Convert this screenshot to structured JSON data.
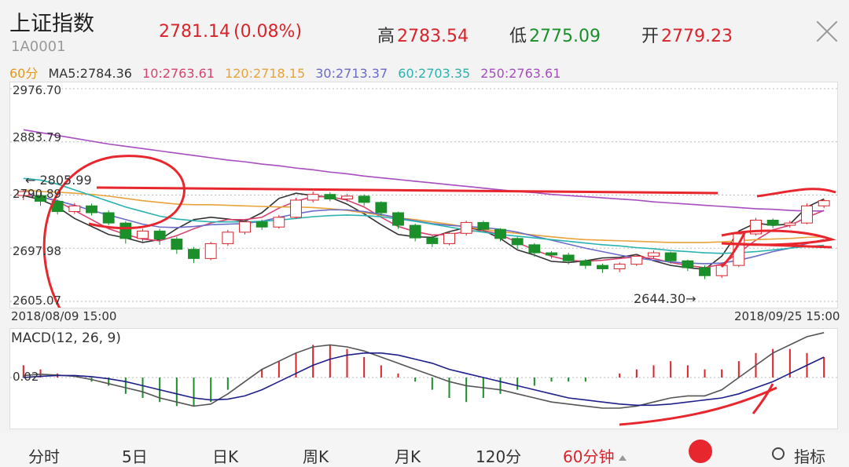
{
  "header": {
    "title": "上证指数",
    "code": "1A0001",
    "price": "2781.14",
    "change_pct": "(0.08%)",
    "high_label": "高",
    "high": "2783.54",
    "low_label": "低",
    "low": "2775.09",
    "open_label": "开",
    "open": "2779.23"
  },
  "ma_legend": [
    {
      "text": "60分",
      "color": "#e09a1e"
    },
    {
      "text": "MA5:2784.36",
      "color": "#333333"
    },
    {
      "text": "10:2763.61",
      "color": "#d9426e"
    },
    {
      "text": "120:2718.15",
      "color": "#e8a33a"
    },
    {
      "text": "30:2713.37",
      "color": "#6b6bc8"
    },
    {
      "text": "60:2703.35",
      "color": "#2ab3b0"
    },
    {
      "text": "250:2763.61",
      "color": "#a84dbf"
    }
  ],
  "chart_data": [
    {
      "type": "line",
      "title": "60分",
      "y_ticks": [
        "2976.70",
        "2883.79",
        "2790.89",
        "2697.98",
        "2605.07"
      ],
      "ylim": [
        2605.07,
        2976.7
      ],
      "x_start": "2018/08/09 15:00",
      "x_end": "2018/09/25 15:00",
      "annotations": {
        "high": "2805.99",
        "low": "2644.30"
      },
      "series": [
        {
          "name": "MA5",
          "color": "#333333",
          "values": [
            2790,
            2783,
            2770,
            2750,
            2736,
            2722,
            2716,
            2708,
            2713,
            2732,
            2748,
            2752,
            2749,
            2745,
            2760,
            2785,
            2794,
            2790,
            2787,
            2775,
            2758,
            2739,
            2722,
            2718,
            2717,
            2727,
            2734,
            2729,
            2715,
            2695,
            2686,
            2675,
            2673,
            2676,
            2681,
            2682,
            2687,
            2676,
            2668,
            2664,
            2661,
            2684,
            2728,
            2742,
            2738,
            2740,
            2770,
            2784
          ]
        },
        {
          "name": "10",
          "color": "#d9426e",
          "values": [
            2792,
            2788,
            2780,
            2764,
            2748,
            2732,
            2722,
            2714,
            2711,
            2720,
            2732,
            2742,
            2748,
            2748,
            2752,
            2768,
            2780,
            2788,
            2788,
            2782,
            2770,
            2752,
            2736,
            2727,
            2721,
            2722,
            2727,
            2729,
            2722,
            2708,
            2695,
            2684,
            2677,
            2675,
            2677,
            2680,
            2683,
            2680,
            2673,
            2668,
            2664,
            2670,
            2690,
            2712,
            2730,
            2738,
            2752,
            2764
          ]
        },
        {
          "name": "120",
          "color": "#e8a33a",
          "values": [
            2800,
            2797,
            2796,
            2794,
            2792,
            2789,
            2785,
            2781,
            2778,
            2775,
            2774,
            2774,
            2773,
            2772,
            2771,
            2770,
            2770,
            2769,
            2767,
            2764,
            2760,
            2756,
            2751,
            2748,
            2744,
            2740,
            2735,
            2731,
            2727,
            2724,
            2721,
            2718,
            2715,
            2713,
            2712,
            2711,
            2710,
            2709,
            2708,
            2708,
            2708,
            2709,
            2711,
            2713,
            2714,
            2715,
            2717,
            2718
          ]
        },
        {
          "name": "30",
          "color": "#6b6bc8",
          "values": [
            2794,
            2788,
            2781,
            2773,
            2764,
            2756,
            2748,
            2740,
            2735,
            2734,
            2736,
            2739,
            2740,
            2741,
            2745,
            2752,
            2758,
            2763,
            2765,
            2765,
            2762,
            2757,
            2751,
            2746,
            2741,
            2738,
            2736,
            2734,
            2731,
            2726,
            2719,
            2712,
            2705,
            2698,
            2692,
            2686,
            2681,
            2677,
            2674,
            2672,
            2671,
            2672,
            2677,
            2684,
            2692,
            2698,
            2706,
            2713
          ]
        },
        {
          "name": "60",
          "color": "#2ab3b0",
          "values": [
            2820,
            2817,
            2810,
            2800,
            2790,
            2780,
            2770,
            2762,
            2754,
            2749,
            2746,
            2744,
            2744,
            2744,
            2745,
            2747,
            2750,
            2753,
            2755,
            2756,
            2755,
            2753,
            2749,
            2745,
            2740,
            2735,
            2730,
            2726,
            2722,
            2719,
            2716,
            2713,
            2710,
            2707,
            2704,
            2702,
            2699,
            2697,
            2694,
            2692,
            2690,
            2689,
            2690,
            2692,
            2695,
            2698,
            2701,
            2703
          ]
        },
        {
          "name": "250",
          "color": "#a84dbf",
          "values": [
            2905,
            2900,
            2895,
            2890,
            2885,
            2880,
            2876,
            2872,
            2868,
            2864,
            2860,
            2856,
            2852,
            2849,
            2845,
            2842,
            2838,
            2835,
            2831,
            2828,
            2824,
            2821,
            2818,
            2815,
            2812,
            2809,
            2806,
            2803,
            2800,
            2797,
            2795,
            2792,
            2790,
            2788,
            2786,
            2784,
            2782,
            2779,
            2777,
            2775,
            2773,
            2771,
            2769,
            2767,
            2766,
            2764,
            2763,
            2763
          ]
        }
      ],
      "candles": [
        [
          2790,
          2797,
          2782,
          2800
        ],
        [
          2790,
          2780,
          2772,
          2795
        ],
        [
          2780,
          2762,
          2757,
          2783
        ],
        [
          2762,
          2772,
          2758,
          2777
        ],
        [
          2772,
          2760,
          2755,
          2776
        ],
        [
          2760,
          2742,
          2738,
          2764
        ],
        [
          2742,
          2715,
          2706,
          2745
        ],
        [
          2715,
          2728,
          2710,
          2732
        ],
        [
          2728,
          2714,
          2704,
          2732
        ],
        [
          2714,
          2696,
          2688,
          2718
        ],
        [
          2696,
          2680,
          2672,
          2700
        ],
        [
          2680,
          2706,
          2677,
          2709
        ],
        [
          2706,
          2726,
          2702,
          2730
        ],
        [
          2726,
          2744,
          2722,
          2748
        ],
        [
          2744,
          2735,
          2730,
          2748
        ],
        [
          2735,
          2752,
          2732,
          2756
        ],
        [
          2752,
          2782,
          2750,
          2786
        ],
        [
          2782,
          2792,
          2778,
          2797
        ],
        [
          2792,
          2784,
          2780,
          2796
        ],
        [
          2784,
          2789,
          2779,
          2793
        ],
        [
          2789,
          2778,
          2772,
          2792
        ],
        [
          2778,
          2760,
          2754,
          2780
        ],
        [
          2760,
          2738,
          2732,
          2762
        ],
        [
          2738,
          2716,
          2710,
          2741
        ],
        [
          2716,
          2706,
          2700,
          2720
        ],
        [
          2706,
          2724,
          2703,
          2727
        ],
        [
          2724,
          2743,
          2720,
          2746
        ],
        [
          2743,
          2731,
          2727,
          2746
        ],
        [
          2731,
          2715,
          2710,
          2733
        ],
        [
          2715,
          2704,
          2697,
          2718
        ],
        [
          2704,
          2690,
          2683,
          2707
        ],
        [
          2690,
          2686,
          2680,
          2693
        ],
        [
          2686,
          2676,
          2670,
          2690
        ],
        [
          2676,
          2668,
          2662,
          2679
        ],
        [
          2668,
          2662,
          2655,
          2671
        ],
        [
          2662,
          2670,
          2656,
          2673
        ],
        [
          2670,
          2684,
          2667,
          2687
        ],
        [
          2684,
          2690,
          2680,
          2694
        ],
        [
          2690,
          2676,
          2671,
          2692
        ],
        [
          2676,
          2664,
          2658,
          2678
        ],
        [
          2664,
          2650,
          2644,
          2668
        ],
        [
          2650,
          2668,
          2646,
          2672
        ],
        [
          2668,
          2723,
          2665,
          2727
        ],
        [
          2723,
          2747,
          2720,
          2751
        ],
        [
          2747,
          2738,
          2733,
          2750
        ],
        [
          2738,
          2742,
          2734,
          2746
        ],
        [
          2742,
          2772,
          2740,
          2776
        ],
        [
          2772,
          2781,
          2768,
          2784
        ]
      ]
    },
    {
      "type": "bar",
      "title": "MACD(12, 26, 9)",
      "y_ticks": [
        "0.02"
      ],
      "series": [
        {
          "name": "MACD",
          "values": [
            3,
            2,
            1,
            0,
            -1,
            -2,
            -4,
            -5,
            -6,
            -7,
            -7,
            -6,
            -3,
            0,
            2,
            4,
            6,
            8,
            8,
            7,
            5,
            3,
            1,
            -1,
            -3,
            -5,
            -6,
            -5,
            -4,
            -3,
            -2,
            -1,
            -1,
            -1,
            0,
            1,
            2,
            3,
            4,
            3,
            2,
            2,
            4,
            6,
            7,
            7,
            6,
            5
          ]
        },
        {
          "name": "DIF",
          "values": [
            0.5,
            0.8,
            0.6,
            0.3,
            -0.5,
            -1.5,
            -2.5,
            -3.5,
            -5,
            -6,
            -7,
            -6.5,
            -4,
            -1,
            2,
            4,
            6,
            7.5,
            8,
            7.5,
            6.5,
            5,
            3.5,
            2,
            0.5,
            -1,
            -2,
            -2.5,
            -3,
            -4,
            -5,
            -6,
            -6.5,
            -7,
            -7.5,
            -7.5,
            -7,
            -6,
            -5,
            -4.5,
            -4.5,
            -3,
            0,
            3,
            6,
            8,
            10,
            11
          ]
        },
        {
          "name": "DEA",
          "values": [
            0,
            0.3,
            0.5,
            0.5,
            0.2,
            -0.3,
            -1,
            -2,
            -3,
            -4,
            -5,
            -5.5,
            -5.3,
            -4.5,
            -3,
            -1,
            1,
            3,
            4.5,
            5.5,
            6,
            6,
            5.5,
            4.5,
            3.5,
            2,
            1,
            0,
            -1,
            -2,
            -3,
            -4,
            -5,
            -5.5,
            -6,
            -6.5,
            -6.8,
            -6.8,
            -6.5,
            -6,
            -5.5,
            -5,
            -4,
            -2.5,
            -1,
            1,
            3,
            5
          ]
        }
      ]
    }
  ],
  "tabs": [
    "分时",
    "5日",
    "日K",
    "周K",
    "月K",
    "120分",
    "60分钟",
    "指标"
  ]
}
